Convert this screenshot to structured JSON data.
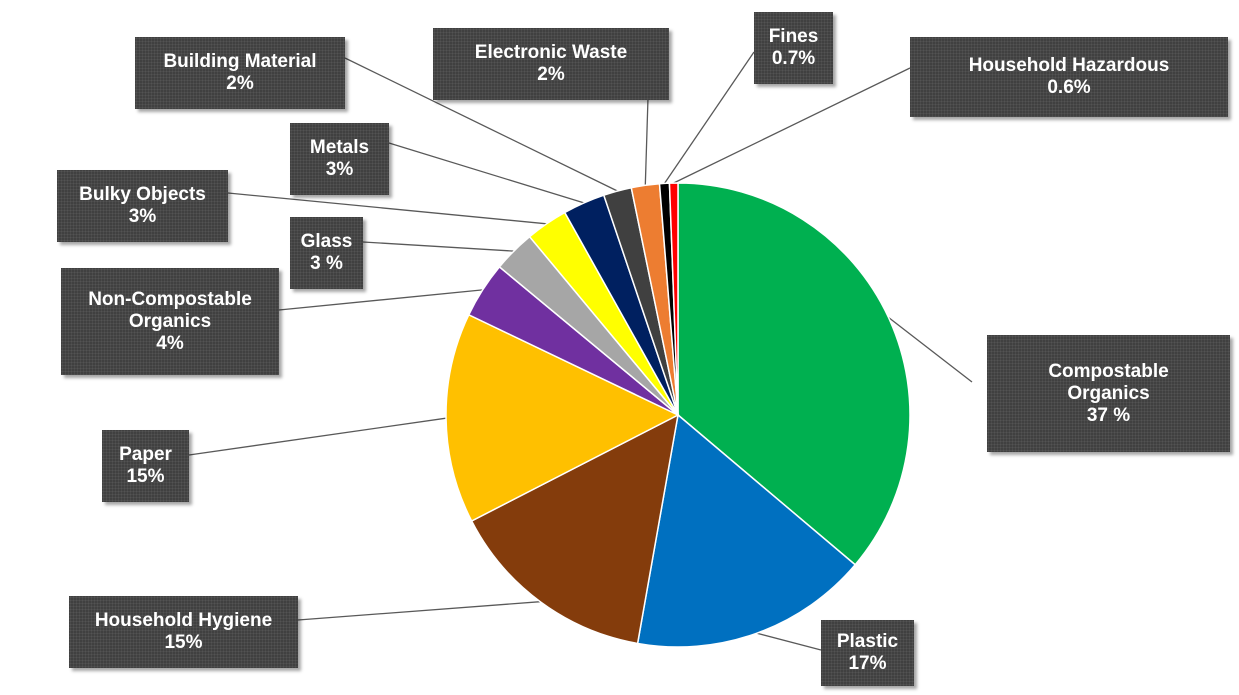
{
  "chart_data": {
    "type": "pie",
    "title": "",
    "slices": [
      {
        "label_lines": [
          "Compostable",
          "Organics"
        ],
        "value_label": "37 %",
        "value": 37,
        "color": "#00B050"
      },
      {
        "label_lines": [
          "Plastic"
        ],
        "value_label": "17%",
        "value": 17,
        "color": "#0070C0"
      },
      {
        "label_lines": [
          "Household Hygiene"
        ],
        "value_label": "15%",
        "value": 15,
        "color": "#843C0C"
      },
      {
        "label_lines": [
          "Paper"
        ],
        "value_label": "15%",
        "value": 15,
        "color": "#FFC000"
      },
      {
        "label_lines": [
          "Non-Compostable",
          "Organics"
        ],
        "value_label": "4%",
        "value": 4,
        "color": "#7030A0"
      },
      {
        "label_lines": [
          "Glass"
        ],
        "value_label": "3 %",
        "value": 3,
        "color": "#A6A6A6"
      },
      {
        "label_lines": [
          "Bulky Objects"
        ],
        "value_label": "3%",
        "value": 3,
        "color": "#FFFF00"
      },
      {
        "label_lines": [
          "Metals"
        ],
        "value_label": "3%",
        "value": 3,
        "color": "#002060"
      },
      {
        "label_lines": [
          "Building Material"
        ],
        "value_label": "2%",
        "value": 2,
        "color": "#404040"
      },
      {
        "label_lines": [
          "Electronic Waste"
        ],
        "value_label": "2%",
        "value": 2,
        "color": "#ED7D31"
      },
      {
        "label_lines": [
          "Fines"
        ],
        "value_label": "0.7%",
        "value": 0.7,
        "color": "#000000"
      },
      {
        "label_lines": [
          "Household Hazardous"
        ],
        "value_label": "0.6%",
        "value": 0.6,
        "color": "#FF0000"
      }
    ]
  }
}
